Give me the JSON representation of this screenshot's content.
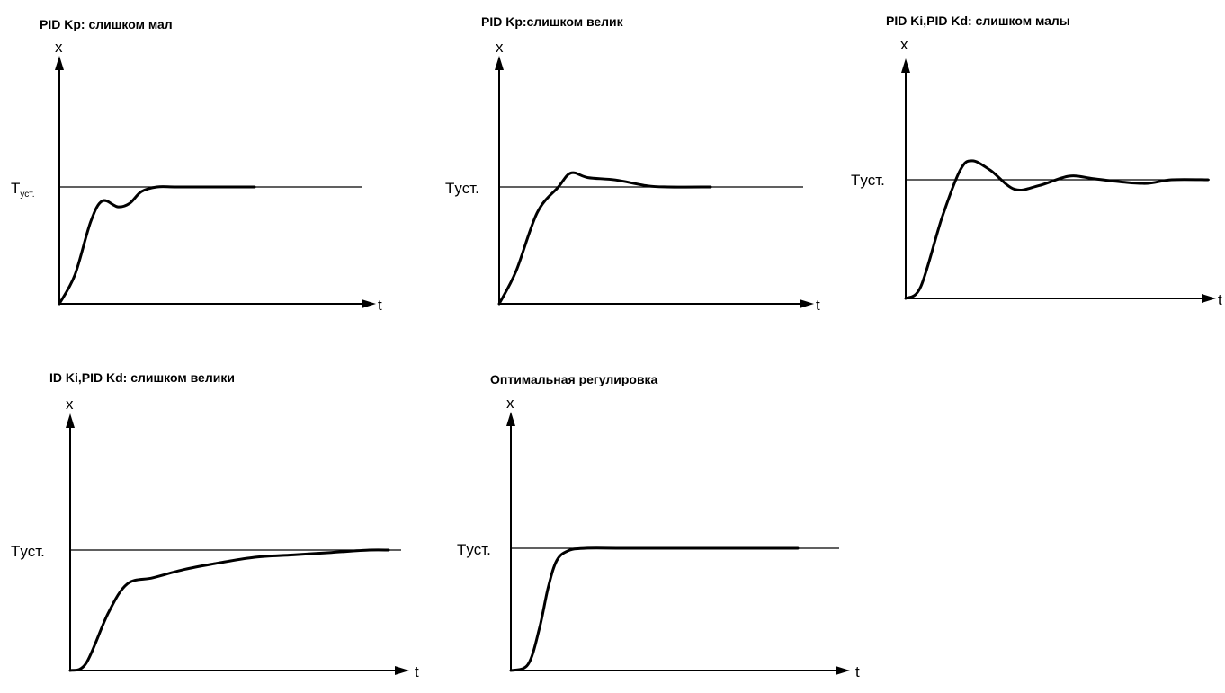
{
  "axis_labels": {
    "y": "x",
    "x": "t"
  },
  "chart_data": [
    {
      "type": "line",
      "title": "PID Kp: слишком мал",
      "setpoint_label": "Tуст.",
      "xlabel": "t",
      "ylabel": "x",
      "x": [
        0,
        0.08,
        0.16,
        0.22,
        0.3,
        0.36,
        0.42,
        0.5,
        0.6,
        0.8,
        1.0
      ],
      "y": [
        0,
        0.25,
        0.7,
        0.88,
        0.83,
        0.86,
        0.96,
        1.0,
        1.0,
        1.0,
        1.0
      ],
      "setpoint": 1.0
    },
    {
      "type": "line",
      "title": "PID Kp:слишком велик",
      "setpoint_label": "Tуст.",
      "xlabel": "t",
      "ylabel": "x",
      "x": [
        0,
        0.08,
        0.18,
        0.28,
        0.34,
        0.42,
        0.55,
        0.7,
        0.8,
        1.0
      ],
      "y": [
        0,
        0.28,
        0.78,
        1.0,
        1.12,
        1.08,
        1.06,
        1.01,
        1.0,
        1.0
      ],
      "setpoint": 1.0
    },
    {
      "type": "line",
      "title": "PID Ki,PID Kd: слишком малы",
      "setpoint_label": "Tуст.",
      "xlabel": "t",
      "ylabel": "x",
      "x": [
        0,
        0.05,
        0.12,
        0.18,
        0.22,
        0.28,
        0.36,
        0.44,
        0.54,
        0.62,
        0.72,
        0.8,
        0.88,
        1.0
      ],
      "y": [
        0,
        0.1,
        0.68,
        1.08,
        1.16,
        1.08,
        0.92,
        0.95,
        1.03,
        1.01,
        0.98,
        0.97,
        1.0,
        1.0
      ],
      "setpoint": 1.0
    },
    {
      "type": "line",
      "title": "ID Ki,PID Kd: слишком велики",
      "setpoint_label": "Tуст.",
      "xlabel": "t",
      "ylabel": "x",
      "x": [
        0,
        0.05,
        0.12,
        0.18,
        0.26,
        0.36,
        0.46,
        0.58,
        0.7,
        0.82,
        0.94,
        1.0
      ],
      "y": [
        0,
        0.06,
        0.48,
        0.72,
        0.77,
        0.84,
        0.89,
        0.94,
        0.96,
        0.98,
        1.0,
        1.0
      ],
      "setpoint": 1.0
    },
    {
      "type": "line",
      "title": "Оптимальная регулировка",
      "setpoint_label": "Tуст.",
      "xlabel": "t",
      "ylabel": "x",
      "x": [
        0,
        0.06,
        0.1,
        0.13,
        0.16,
        0.2,
        0.26,
        0.4,
        0.7,
        1.0
      ],
      "y": [
        0,
        0.05,
        0.35,
        0.68,
        0.9,
        0.98,
        1.0,
        1.0,
        1.0,
        1.0
      ],
      "setpoint": 1.0
    }
  ]
}
